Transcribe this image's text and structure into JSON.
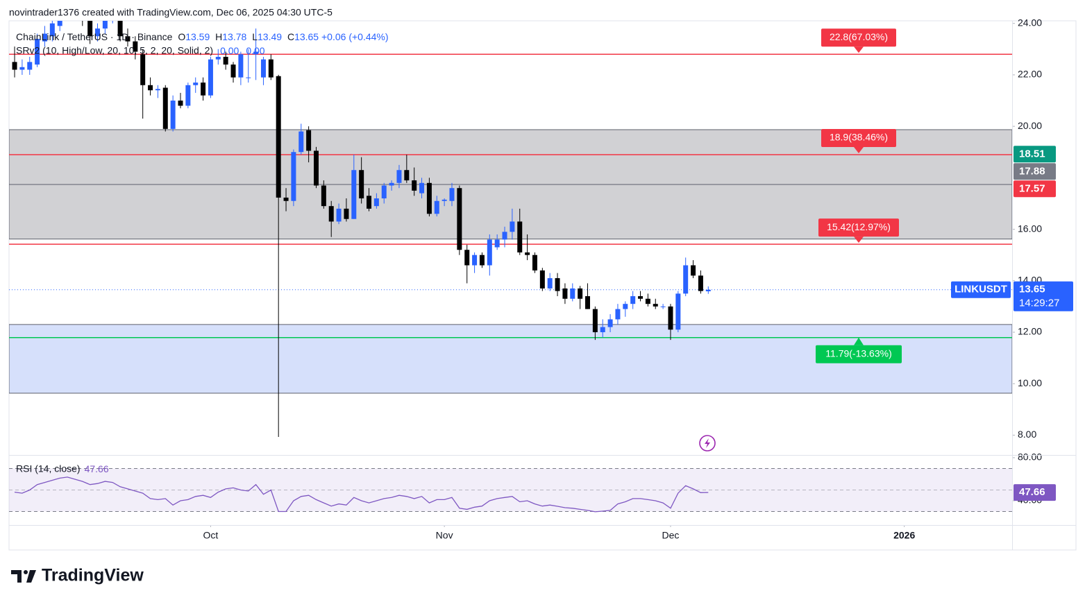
{
  "header": {
    "credit": "novintrader1376 created with TradingView.com, Dec 06, 2025 04:30 UTC-5",
    "logo": "TradingView"
  },
  "chart_data": {
    "type": "candlestick",
    "title": "ChainLink / TetherUS · 1D · Binance",
    "legend_values": [
      {
        "label": "O",
        "value": 13.59
      },
      {
        "label": "H",
        "value": 13.78
      },
      {
        "label": "L",
        "value": 13.49
      },
      {
        "label": "C",
        "value": 13.65
      }
    ],
    "change": "+0.06 (+0.44%)",
    "indicator": "SRv2 (10, High/Low, 20, 10, 5, 2, 20, Solid, 2)",
    "indicator_values": [
      "0.00",
      "0.00"
    ],
    "up_color": "#2962ff",
    "down_color": "#000000",
    "open": [
      22.5,
      22.2,
      22.2,
      22.4,
      23.3,
      23.5,
      23.9,
      24.4,
      24.9,
      24.6,
      24.2,
      23.5,
      23.8,
      24.3,
      24.2,
      23.5,
      23.3,
      22.8,
      21.6,
      21.4,
      21.5,
      19.9,
      21.0,
      20.8,
      21.6,
      21.7,
      21.2,
      22.6,
      22.7,
      22.4,
      21.9,
      21.9,
      22.8,
      21.9,
      22.6,
      21.95,
      17.23,
      17.1,
      19.0,
      19.85,
      19.05,
      17.7,
      16.9,
      16.3,
      16.8,
      16.4,
      18.3,
      17.3,
      16.9,
      17.2,
      17.7,
      17.8,
      18.3,
      17.9,
      17.4,
      17.8,
      16.6,
      17.1,
      17.1,
      17.6,
      15.2,
      14.6,
      15.0,
      14.6,
      15.3,
      15.6,
      15.9,
      16.3,
      15.1,
      15.0,
      14.4,
      13.7,
      14.1,
      13.7,
      13.3,
      13.7,
      13.4,
      12.9,
      12.0,
      12.2,
      12.5,
      12.9,
      13.1,
      13.4,
      13.3,
      13.1,
      13.0,
      13.0,
      12.1,
      13.5,
      14.6,
      14.2,
      13.59
    ],
    "high": [
      23.1,
      22.6,
      22.7,
      23.6,
      23.9,
      24.3,
      24.8,
      25.1,
      25.2,
      24.9,
      24.4,
      24.0,
      24.5,
      24.7,
      24.4,
      23.8,
      23.5,
      23.0,
      21.9,
      21.6,
      21.6,
      21.2,
      21.3,
      21.7,
      21.9,
      21.9,
      22.7,
      23.0,
      22.9,
      22.5,
      22.9,
      23.0,
      23.8,
      22.7,
      22.8,
      22.0,
      17.6,
      19.1,
      20.1,
      20.0,
      19.2,
      17.9,
      17.1,
      17.0,
      17.2,
      18.9,
      18.8,
      17.6,
      17.4,
      17.8,
      17.9,
      18.5,
      18.9,
      18.4,
      18.0,
      18.0,
      17.3,
      17.2,
      17.8,
      17.7,
      15.4,
      15.1,
      15.1,
      15.8,
      15.8,
      16.1,
      16.8,
      16.8,
      15.8,
      15.1,
      14.5,
      14.3,
      14.3,
      13.9,
      13.9,
      13.8,
      13.9,
      13.0,
      12.5,
      12.7,
      13.1,
      13.2,
      13.6,
      13.6,
      13.5,
      13.3,
      13.1,
      13.1,
      13.6,
      14.9,
      14.8,
      14.4,
      13.78
    ],
    "low": [
      21.9,
      22.0,
      22.0,
      22.3,
      23.1,
      23.3,
      23.7,
      24.2,
      24.4,
      23.9,
      23.2,
      23.3,
      23.6,
      24.0,
      23.3,
      23.1,
      22.6,
      20.3,
      21.2,
      21.1,
      19.8,
      19.8,
      20.7,
      20.7,
      21.3,
      21.0,
      21.1,
      22.4,
      22.2,
      21.7,
      21.6,
      21.7,
      21.8,
      21.6,
      21.8,
      7.93,
      16.7,
      16.9,
      18.9,
      18.6,
      17.6,
      16.8,
      15.7,
      16.2,
      16.3,
      16.4,
      17.0,
      16.7,
      16.8,
      17.0,
      17.5,
      17.6,
      17.8,
      17.3,
      17.2,
      16.5,
      16.5,
      16.9,
      16.9,
      15.0,
      13.9,
      14.3,
      14.5,
      14.2,
      15.2,
      15.3,
      15.6,
      15.0,
      14.8,
      14.3,
      13.6,
      13.6,
      13.4,
      13.1,
      13.2,
      12.9,
      12.9,
      11.7,
      11.8,
      12.0,
      12.3,
      12.6,
      12.9,
      13.2,
      13.0,
      12.9,
      12.9,
      11.7,
      12.0,
      13.4,
      14.1,
      13.5,
      13.49
    ],
    "close": [
      22.2,
      22.3,
      22.5,
      23.4,
      23.6,
      24.0,
      24.5,
      24.9,
      24.6,
      24.2,
      23.5,
      23.8,
      24.3,
      24.5,
      23.5,
      23.3,
      22.9,
      21.6,
      21.4,
      21.45,
      19.9,
      21.0,
      20.8,
      21.6,
      21.7,
      21.2,
      22.6,
      22.7,
      22.4,
      21.9,
      22.8,
      21.9,
      22.9,
      22.6,
      21.9,
      17.23,
      17.1,
      19.0,
      19.8,
      19.05,
      17.7,
      16.9,
      16.3,
      16.8,
      16.4,
      18.3,
      17.2,
      16.8,
      17.2,
      17.7,
      17.8,
      18.3,
      17.9,
      17.5,
      17.8,
      16.6,
      17.1,
      17.15,
      17.6,
      15.2,
      14.6,
      15.0,
      14.6,
      15.6,
      15.6,
      15.9,
      16.3,
      15.1,
      15.0,
      14.4,
      13.7,
      14.1,
      13.6,
      13.3,
      13.7,
      13.3,
      12.9,
      12.0,
      12.2,
      12.5,
      12.9,
      13.1,
      13.4,
      13.3,
      13.1,
      13.0,
      13.0,
      12.1,
      13.5,
      14.6,
      14.2,
      13.6,
      13.65
    ],
    "xlim": [
      -0.74,
      132.3
    ],
    "xticks": [
      {
        "value": 26,
        "label": "Oct"
      },
      {
        "value": 57,
        "label": "Nov"
      },
      {
        "value": 87,
        "label": "Dec"
      },
      {
        "value": 118,
        "label": "2026"
      }
    ],
    "ylim": [
      7.23,
      24.1
    ],
    "yticks": [
      {
        "value": 8,
        "label": "8.00"
      },
      {
        "value": 10,
        "label": "10.00"
      },
      {
        "value": 12,
        "label": "12.00"
      },
      {
        "value": 14,
        "label": "14.00"
      },
      {
        "value": 16,
        "label": "16.00"
      },
      {
        "value": 20,
        "label": "20.00"
      },
      {
        "value": 22,
        "label": "22.00"
      },
      {
        "value": 24,
        "label": "24.00"
      }
    ],
    "zones": [
      {
        "from": 15.62,
        "to": 19.87,
        "color": "#d1d1d4"
      },
      {
        "from": 9.63,
        "to": 12.3,
        "color": "#d6e0fb"
      }
    ],
    "lines": [
      {
        "value": 17.74,
        "color": "#5d606b"
      }
    ],
    "levels": [
      {
        "value": 22.8,
        "label": "22.8(67.03%)",
        "color": "#f23645"
      },
      {
        "value": 18.9,
        "label": "18.9(38.46%)",
        "color": "#f23645"
      },
      {
        "value": 15.42,
        "label": "15.42(12.97%)",
        "color": "#f23645"
      },
      {
        "value": 11.79,
        "label": "11.79(-13.63%)",
        "color": "#00c853"
      }
    ],
    "price_labels": [
      {
        "value": 18.51,
        "color": "#089981"
      },
      {
        "value": 17.88,
        "color": "#787b86"
      },
      {
        "value": 17.57,
        "color": "#f23645"
      }
    ],
    "last_price": {
      "symbol": "LINKUSDT",
      "value": 13.65,
      "countdown": "14:29:27",
      "color": "#2962ff"
    },
    "rsi": {
      "label": "RSI (14, close)",
      "value": 47.66,
      "color": "#7e57c2",
      "values": [
        48,
        47,
        50,
        55,
        57,
        59,
        61,
        62,
        60,
        58,
        55,
        56,
        58,
        57,
        53,
        51,
        49,
        47,
        42,
        41,
        42,
        36,
        40,
        41,
        44,
        45,
        43,
        48,
        51,
        52,
        50,
        49,
        55,
        46,
        50,
        30,
        30,
        40,
        44,
        45,
        41,
        38,
        35,
        37,
        36,
        43,
        40,
        38,
        40,
        42,
        43,
        45,
        44,
        42,
        44,
        38,
        41,
        41,
        43,
        33,
        32,
        34,
        35,
        40,
        42,
        43,
        44,
        39,
        40,
        37,
        35,
        36,
        34.8,
        33.5,
        33,
        32,
        31,
        29.7,
        30.3,
        31,
        37,
        39,
        42,
        42,
        41,
        40,
        38,
        33,
        47,
        54,
        51,
        47.5,
        47.66
      ],
      "ylim": [
        17.4,
        81.9
      ],
      "yticks": [
        {
          "value": 80,
          "label": "80.00"
        },
        {
          "value": 40,
          "label": "40.00"
        }
      ],
      "bands": [
        70,
        50,
        30
      ]
    }
  }
}
